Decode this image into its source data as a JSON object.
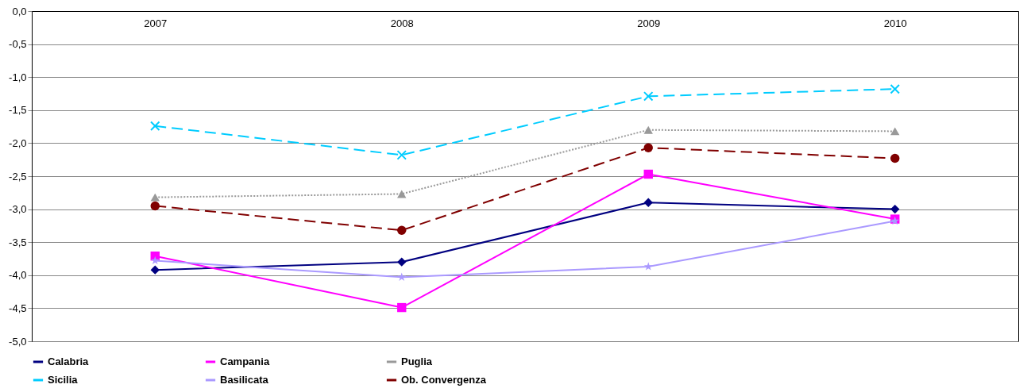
{
  "chart_data": {
    "type": "line",
    "categories": [
      "2007",
      "2008",
      "2009",
      "2010"
    ],
    "ylim": [
      -5,
      0
    ],
    "yticks": [
      {
        "value": 0,
        "label": "0,0"
      },
      {
        "value": -0.5,
        "label": "-0,5"
      },
      {
        "value": -1,
        "label": "-1,0"
      },
      {
        "value": -1.5,
        "label": "-1,5"
      },
      {
        "value": -2,
        "label": "-2,0"
      },
      {
        "value": -2.5,
        "label": "-2,5"
      },
      {
        "value": -3,
        "label": "-3,0"
      },
      {
        "value": -3.5,
        "label": "-3,5"
      },
      {
        "value": -4,
        "label": "-4,0"
      },
      {
        "value": -4.5,
        "label": "-4,5"
      },
      {
        "value": -5,
        "label": "-5,0"
      }
    ],
    "grid": "y",
    "legend": "bottom",
    "series": [
      {
        "name": "Calabria",
        "color": "#000080",
        "marker": "diamond",
        "line_style": "solid",
        "values": [
          -3.92,
          -3.8,
          -2.9,
          -3.0
        ]
      },
      {
        "name": "Campania",
        "color": "#ff00ff",
        "marker": "square",
        "line_style": "solid",
        "values": [
          -3.71,
          -4.49,
          -2.47,
          -3.15
        ]
      },
      {
        "name": "Puglia",
        "color": "#999999",
        "marker": "triangle",
        "line_style": "dotted",
        "values": [
          -2.82,
          -2.77,
          -1.8,
          -1.82
        ]
      },
      {
        "name": "Sicilia",
        "color": "#00ccff",
        "marker": "cross",
        "line_style": "dashed",
        "values": [
          -1.74,
          -2.18,
          -1.29,
          -1.18
        ]
      },
      {
        "name": "Basilicata",
        "color": "#aa99ff",
        "marker": "star",
        "line_style": "solid",
        "values": [
          -3.78,
          -4.03,
          -3.87,
          -3.18
        ]
      },
      {
        "name": "Ob. Convergenza",
        "color": "#800000",
        "marker": "circle",
        "line_style": "dashed",
        "values": [
          -2.95,
          -3.32,
          -2.07,
          -2.23
        ]
      }
    ]
  }
}
